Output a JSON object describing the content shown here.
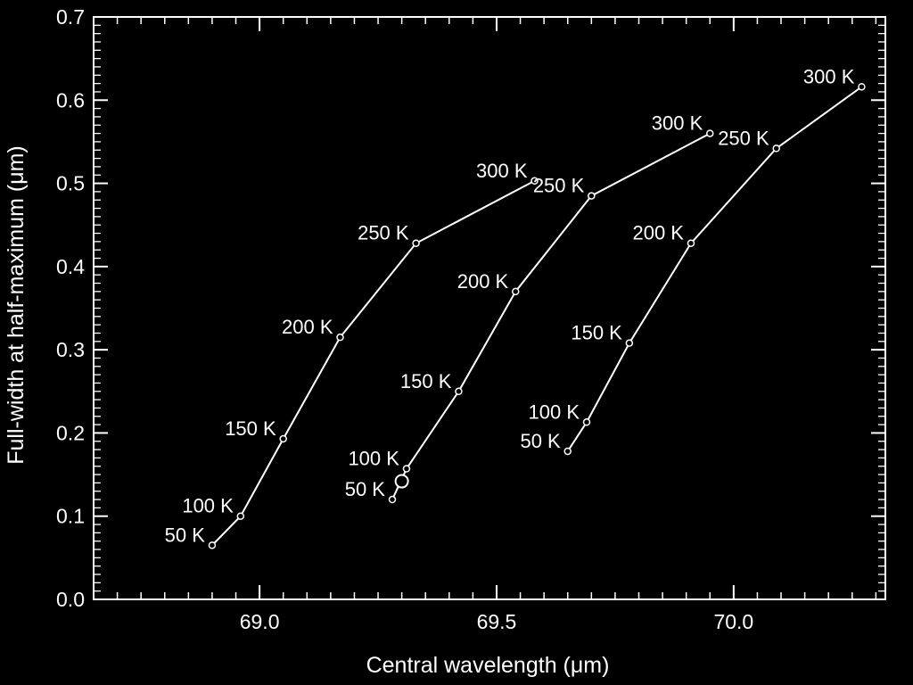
{
  "chart_data": {
    "type": "line",
    "xlabel": "Central wavelength (μm)",
    "ylabel": "Full-width at half-maximum (μm)",
    "xlim": [
      68.65,
      70.32
    ],
    "ylim": [
      0.0,
      0.7
    ],
    "x_ticks": [
      "69.0",
      "69.5",
      "70.0"
    ],
    "y_ticks": [
      "0.0",
      "0.1",
      "0.2",
      "0.3",
      "0.4",
      "0.5",
      "0.6",
      "0.7"
    ],
    "grid": false,
    "series": [
      {
        "points": [
          {
            "label": "50 K",
            "x": 68.9,
            "y": 0.065
          },
          {
            "label": "100 K",
            "x": 68.96,
            "y": 0.1
          },
          {
            "label": "150 K",
            "x": 69.05,
            "y": 0.193
          },
          {
            "label": "200 K",
            "x": 69.17,
            "y": 0.315
          },
          {
            "label": "250 K",
            "x": 69.33,
            "y": 0.428
          },
          {
            "label": "300 K",
            "x": 69.58,
            "y": 0.503
          }
        ]
      },
      {
        "points": [
          {
            "label": "50 K",
            "x": 69.28,
            "y": 0.12
          },
          {
            "label": "100 K",
            "x": 69.31,
            "y": 0.157
          },
          {
            "label": "150 K",
            "x": 69.42,
            "y": 0.25
          },
          {
            "label": "200 K",
            "x": 69.54,
            "y": 0.37
          },
          {
            "label": "250 K",
            "x": 69.7,
            "y": 0.485
          },
          {
            "label": "300 K",
            "x": 69.95,
            "y": 0.56
          }
        ]
      },
      {
        "points": [
          {
            "label": "50 K",
            "x": 69.65,
            "y": 0.178
          },
          {
            "label": "100 K",
            "x": 69.69,
            "y": 0.213
          },
          {
            "label": "150 K",
            "x": 69.78,
            "y": 0.308
          },
          {
            "label": "200 K",
            "x": 69.91,
            "y": 0.428
          },
          {
            "label": "250 K",
            "x": 70.09,
            "y": 0.542
          },
          {
            "label": "300 K",
            "x": 70.27,
            "y": 0.616
          }
        ]
      }
    ],
    "markers": [
      {
        "x": 69.3,
        "y": 0.142
      }
    ]
  }
}
